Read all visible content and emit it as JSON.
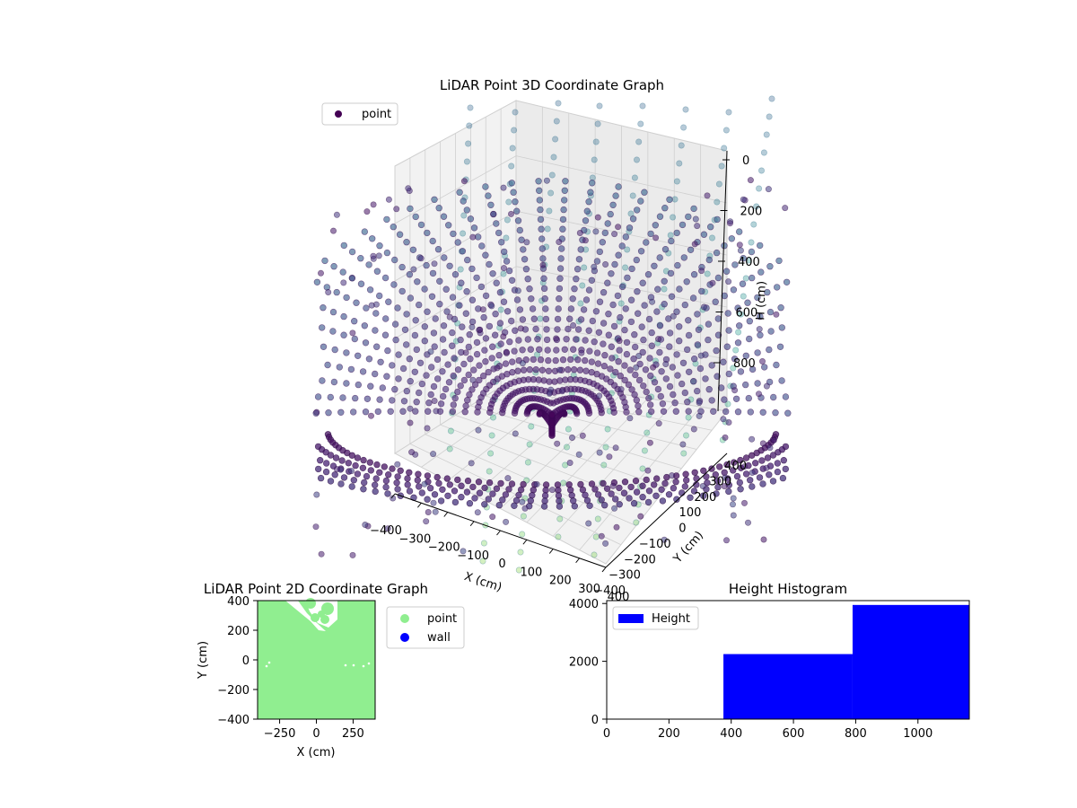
{
  "chart_data": [
    {
      "type": "scatter",
      "title": "LiDAR Point 3D Coordinate Graph",
      "xlabel": "X (cm)",
      "ylabel": "Y (cm)",
      "zlabel": "H (cm)",
      "x_ticks": [
        "−400",
        "−300",
        "−200",
        "−100",
        "0",
        "100",
        "200",
        "300",
        "400"
      ],
      "y_ticks": [
        "−400",
        "−300",
        "−200",
        "−100",
        "0",
        "100",
        "200",
        "300",
        "400"
      ],
      "z_ticks": [
        "0",
        "200",
        "400",
        "600",
        "800"
      ],
      "xlim": [
        -400,
        400
      ],
      "ylim": [
        -400,
        400
      ],
      "zlim": [
        0,
        1000
      ],
      "z_inverted": true,
      "legend": [
        {
          "name": "point",
          "color": "#440154"
        }
      ],
      "legend_position": "top-left",
      "colormap": "viridis",
      "grid": true,
      "surface": {
        "shape": "bowl",
        "rings": 36,
        "points_per_ring": 26,
        "depth_range": [
          0,
          900
        ]
      }
    },
    {
      "type": "scatter",
      "title": "LiDAR Point 2D Coordinate Graph",
      "xlabel": "X (cm)",
      "ylabel": "Y (cm)",
      "x_ticks": [
        "−250",
        "0",
        "250"
      ],
      "y_ticks": [
        "400",
        "200",
        "0",
        "−200",
        "−400"
      ],
      "xlim": [
        -400,
        400
      ],
      "ylim": [
        -400,
        400
      ],
      "legend": [
        {
          "name": "point",
          "color": "#90ee90"
        },
        {
          "name": "wall",
          "color": "#0000ff"
        }
      ],
      "legend_position": "outside-right"
    },
    {
      "type": "bar",
      "title": "Height Histogram",
      "x_ticks": [
        "0",
        "200",
        "400",
        "600",
        "800",
        "1000"
      ],
      "y_ticks": [
        "0",
        "2000",
        "4000"
      ],
      "xlim": [
        0,
        1165
      ],
      "ylim": [
        0,
        4100
      ],
      "bins": [
        {
          "x0": 375,
          "x1": 790,
          "count": 2250
        },
        {
          "x0": 790,
          "x1": 1165,
          "count": 3950
        }
      ],
      "legend": [
        {
          "name": "Height",
          "color": "#0000ff"
        }
      ],
      "legend_position": "top-left"
    }
  ]
}
